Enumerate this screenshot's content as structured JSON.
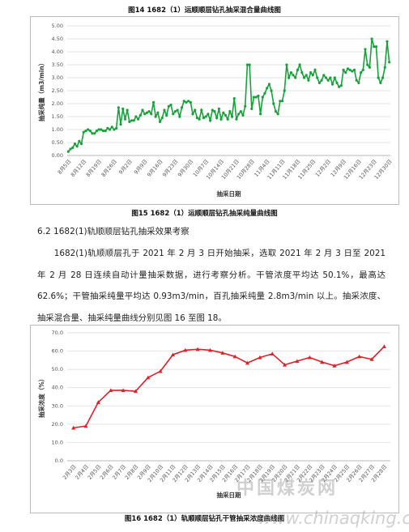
{
  "top_caption": "图14 1682（1）运顺顺层钻孔抽采混合量曲线图",
  "figure15_caption": "图15 1682（1）运顺顺层钻孔抽采纯量曲线图",
  "heading": "6.2 1682(1)轨顺顺层钻孔抽采效果考察",
  "paragraph": "1682(1)轨顺顺层孔于 2021 年 2 月 3 日开始抽采，选取 2021 年 2 月 3 日至 2021 年 2 月 28 日连续自动计量抽采数据，进行考察分析。干管浓度平均达 50.1%，最高达 62.6%；干管抽采纯量平均达 0.93m3/min，百孔抽采纯量 2.8m3/min 以上。抽采浓度、抽采混合量、抽采纯量曲线分别见图 16 至图 18。",
  "figure16_caption": "图16 1682（1）轨顺顺层钻孔干管抽采浓度曲线图",
  "watermark": [
    "中国煤炭网",
    "www.chinaqking.com"
  ],
  "chart_data": [
    {
      "type": "line",
      "y_label": "抽采纯量（m3/min）",
      "x_label": "抽采日期",
      "categories": [
        "8月5日",
        null,
        null,
        null,
        null,
        null,
        null,
        "8月12日",
        null,
        null,
        null,
        null,
        null,
        null,
        "8月19日",
        null,
        null,
        null,
        null,
        null,
        null,
        "8月26日",
        null,
        null,
        null,
        null,
        null,
        null,
        "9月2日",
        null,
        null,
        null,
        null,
        null,
        null,
        "9月9日",
        null,
        null,
        null,
        null,
        null,
        null,
        "9月16日",
        null,
        null,
        null,
        null,
        null,
        null,
        "9月23日",
        null,
        null,
        null,
        null,
        null,
        null,
        "9月30日",
        null,
        null,
        null,
        null,
        null,
        null,
        "10月7日",
        null,
        null,
        null,
        null,
        null,
        null,
        "10月14日",
        null,
        null,
        null,
        null,
        null,
        null,
        "10月21日",
        null,
        null,
        null,
        null,
        null,
        null,
        "10月28日",
        null,
        null,
        null,
        null,
        null,
        null,
        "11月4日",
        null,
        null,
        null,
        null,
        null,
        null,
        "11月11日",
        null,
        null,
        null,
        null,
        null,
        null,
        "11月18日",
        null,
        null,
        null,
        null,
        null,
        null,
        "11月25日",
        null,
        null,
        null,
        null,
        null,
        null,
        "12月2日",
        null,
        null,
        null,
        null,
        null,
        null,
        "12月9日",
        null,
        null,
        null,
        null,
        null,
        null,
        "12月16日",
        null,
        null,
        null,
        null,
        null,
        null,
        "12月23日",
        null,
        null,
        null,
        null,
        null,
        null,
        "12月30日"
      ],
      "series": [
        {
          "color": "#17a23a",
          "marker": "circle",
          "values": [
            0.15,
            0.25,
            0.3,
            0.45,
            0.35,
            0.55,
            0.45,
            0.9,
            0.95,
            1.0,
            0.95,
            0.85,
            0.85,
            0.95,
            1.0,
            1.0,
            0.95,
            0.95,
            1.05,
            1.0,
            1.1,
            1.0,
            1.05,
            1.85,
            1.2,
            1.8,
            1.4,
            1.75,
            1.3,
            1.35,
            1.35,
            1.5,
            1.4,
            1.55,
            1.75,
            1.6,
            1.65,
            1.7,
            1.6,
            2.05,
            1.5,
            1.65,
            1.3,
            1.45,
            1.75,
            1.55,
            1.9,
            1.95,
            1.6,
            1.7,
            1.75,
            1.5,
            1.85,
            2.1,
            2.05,
            2.1,
            2.05,
            1.6,
            1.75,
            1.45,
            1.4,
            1.75,
            1.45,
            1.5,
            1.6,
            1.35,
            1.75,
            1.7,
            1.45,
            1.8,
            1.4,
            1.65,
            1.55,
            1.4,
            1.7,
            1.5,
            2.2,
            1.4,
            1.6,
            1.7,
            1.55,
            1.9,
            3.5,
            3.5,
            1.8,
            2.25,
            2.25,
            2.3,
            1.6,
            2.25,
            2.4,
            2.6,
            2.75,
            2.5,
            2.0,
            1.7,
            1.6,
            2.1,
            2.1,
            2.5,
            3.5,
            3.0,
            3.2,
            3.1,
            3.0,
            3.3,
            3.5,
            3.2,
            3.0,
            3.1,
            2.9,
            3.2,
            3.1,
            3.3,
            3.0,
            2.8,
            2.9,
            3.1,
            3.0,
            2.9,
            3.0,
            2.75,
            3.0,
            2.8,
            2.65,
            2.7,
            3.3,
            3.2,
            3.35,
            3.3,
            3.25,
            3.3,
            2.9,
            2.8,
            3.2,
            3.3,
            4.1,
            3.5,
            3.4,
            4.5,
            4.2,
            4.2,
            3.0,
            2.8,
            3.0,
            3.4,
            4.4,
            3.6
          ]
        }
      ],
      "ylim": [
        0,
        5
      ],
      "yticks": [
        {
          "value": 0,
          "label": "0.00"
        },
        {
          "value": 0.5,
          "label": "0.50"
        },
        {
          "value": 1,
          "label": "1.00"
        },
        {
          "value": 1.5,
          "label": "1.50"
        },
        {
          "value": 2,
          "label": "2.00"
        },
        {
          "value": 2.5,
          "label": "2.50"
        },
        {
          "value": 3,
          "label": "3.00"
        },
        {
          "value": 3.5,
          "label": "3.50"
        },
        {
          "value": 4,
          "label": "4.00"
        },
        {
          "value": 4.5,
          "label": "4.50"
        },
        {
          "value": 5,
          "label": "5.00"
        }
      ],
      "grid": true
    },
    {
      "type": "line",
      "y_label": "抽采浓度（%）",
      "x_label": "抽采日期",
      "categories": [
        "2月3日",
        "2月4日",
        "2月5日",
        "2月6日",
        "2月7日",
        "2月8日",
        "2月9日",
        "2月10日",
        "2月11日",
        "2月12日",
        "2月13日",
        "2月14日",
        "2月15日",
        "2月16日",
        "2月17日",
        "2月18日",
        "2月19日",
        "2月20日",
        "2月21日",
        "2月22日",
        "2月23日",
        "2月24日",
        "2月25日",
        "2月26日",
        "2月27日",
        "2月28日"
      ],
      "series": [
        {
          "color": "#e0202a",
          "marker": "triangle",
          "values": [
            18,
            19,
            32,
            38.5,
            38.5,
            38,
            45.5,
            49,
            58,
            60.5,
            61,
            60.5,
            59,
            57,
            53.5,
            56.5,
            58.5,
            52.5,
            54.5,
            56.5,
            54,
            52,
            54,
            57,
            55.5,
            62.5
          ]
        }
      ],
      "ylim": [
        0,
        70
      ],
      "yticks": [
        {
          "value": 0,
          "label": "0.0"
        },
        {
          "value": 10,
          "label": "10.0"
        },
        {
          "value": 20,
          "label": "20.0"
        },
        {
          "value": 30,
          "label": "30.0"
        },
        {
          "value": 40,
          "label": "40.0"
        },
        {
          "value": 50,
          "label": "50.0"
        },
        {
          "value": 60,
          "label": "60.0"
        },
        {
          "value": 70,
          "label": "70.0"
        }
      ],
      "grid": true
    }
  ]
}
